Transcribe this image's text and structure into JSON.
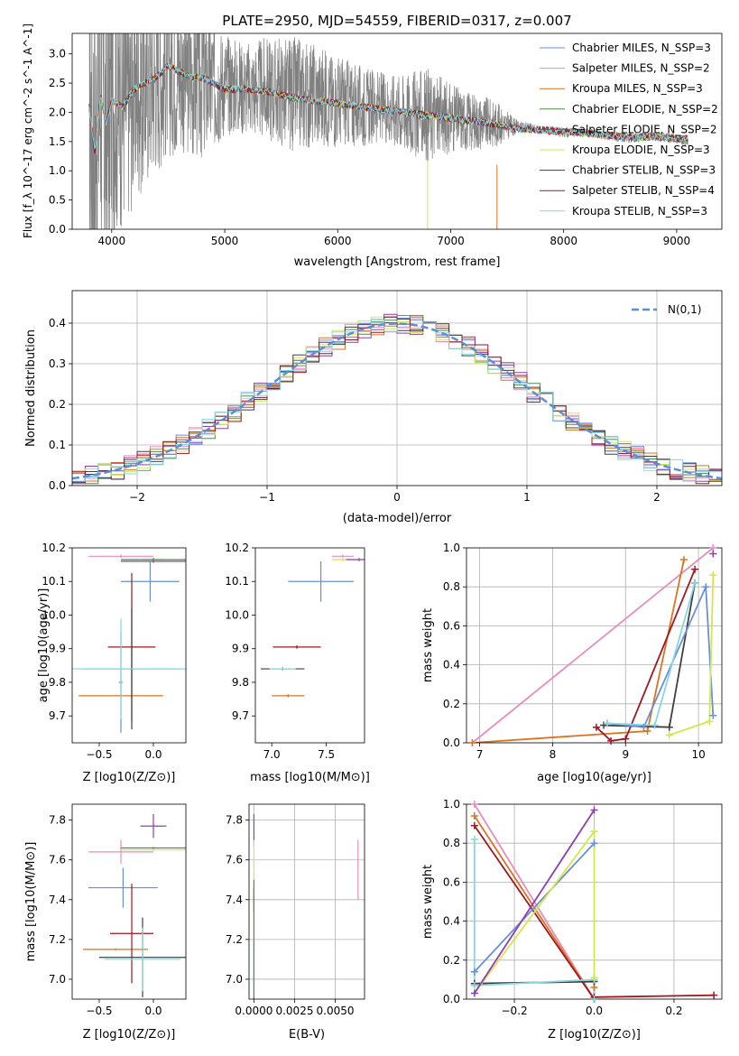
{
  "figure_title": "PLATE=2950, MJD=54559, FIBERID=0317, z=0.007",
  "colors": {
    "data": "#808080",
    "Chabrier MILES": "#6a8fd6",
    "Salpeter MILES": "#e98cbd",
    "Kroupa MILES": "#d9741e",
    "Chabrier ELODIE": "#4e8a4e",
    "Salpeter ELODIE": "#8e3fb0",
    "Kroupa ELODIE": "#d2e84a",
    "Chabrier STELIB": "#3f3f3f",
    "Salpeter STELIB": "#a01621",
    "Kroupa STELIB": "#86d7e0",
    "gaussian": "#5b8ed8",
    "grid": "#b0b0b0"
  },
  "chart_data": [
    {
      "id": "spectrum",
      "type": "line",
      "title": "PLATE=2950, MJD=54559, FIBERID=0317, z=0.007",
      "xlabel": "wavelength [Angstrom, rest frame]",
      "ylabel": "Flux [f_λ 10^-17 erg cm^-2 s^-1 A^-1]",
      "xlim": [
        3650,
        9400
      ],
      "ylim": [
        0,
        3.35
      ],
      "xticks": [
        4000,
        5000,
        6000,
        7000,
        8000,
        9000
      ],
      "yticks": [
        0.0,
        0.5,
        1.0,
        1.5,
        2.0,
        2.5,
        3.0
      ],
      "grid": false,
      "legend_position": "top-right",
      "legend": [
        {
          "label": "Chabrier MILES, N_SSP=3",
          "name": "Chabrier MILES",
          "ssp": "3"
        },
        {
          "label": "Salpeter MILES, N_SSP=2",
          "name": "Salpeter MILES",
          "ssp": "2"
        },
        {
          "label": "Kroupa MILES, N_SSP=3",
          "name": "Kroupa MILES",
          "ssp": "3"
        },
        {
          "label": "Chabrier ELODIE, N_SSP=2",
          "name": "Chabrier ELODIE",
          "ssp": "2"
        },
        {
          "label": "Salpeter ELODIE, N_SSP=2",
          "name": "Salpeter ELODIE",
          "ssp": "2"
        },
        {
          "label": "Kroupa ELODIE, N_SSP=3",
          "name": "Kroupa ELODIE",
          "ssp": "3"
        },
        {
          "label": "Chabrier STELIB, N_SSP=3",
          "name": "Chabrier STELIB",
          "ssp": "3"
        },
        {
          "label": "Salpeter STELIB, N_SSP=4",
          "name": "Salpeter STELIB",
          "ssp": "4"
        },
        {
          "label": "Kroupa STELIB, N_SSP=3",
          "name": "Kroupa STELIB",
          "ssp": "3"
        }
      ],
      "observed": {
        "x": [
          3800,
          3850,
          3900,
          3950,
          4000,
          4100,
          4200,
          4300,
          4400,
          4500,
          4600,
          4700,
          4800,
          4900,
          5000,
          5200,
          5400,
          5600,
          5800,
          6000,
          6200,
          6400,
          6600,
          6800,
          7000,
          7200,
          7400,
          7600,
          7800,
          8000,
          8200,
          8400,
          8600,
          8800,
          9000,
          9100
        ],
        "y": [
          2.2,
          1.5,
          2.4,
          1.6,
          2.3,
          2.2,
          2.4,
          2.5,
          2.6,
          2.7,
          2.7,
          2.6,
          2.6,
          2.5,
          2.5,
          2.4,
          2.4,
          2.3,
          2.3,
          2.2,
          2.1,
          2.1,
          2.0,
          1.95,
          1.9,
          1.85,
          1.8,
          1.75,
          1.7,
          1.65,
          1.65,
          1.6,
          1.55,
          1.6,
          1.55,
          1.5
        ],
        "noise_amplitude": [
          3.0,
          3.0,
          3.0,
          3.0,
          2.5,
          2.2,
          2.0,
          1.8,
          1.6,
          1.5,
          1.4,
          1.4,
          1.5,
          1.2,
          0.9,
          0.8,
          0.9,
          1.0,
          0.9,
          0.8,
          0.7,
          0.6,
          0.7,
          0.8,
          0.6,
          0.5,
          0.4,
          0.1,
          0.08,
          0.08,
          0.08,
          0.08,
          0.08,
          0.08,
          0.08,
          0.08
        ]
      },
      "model": {
        "x": [
          3800,
          3850,
          3900,
          3950,
          4000,
          4100,
          4200,
          4300,
          4400,
          4500,
          4600,
          4700,
          4800,
          4900,
          5000,
          5200,
          5400,
          5600,
          5800,
          6000,
          6200,
          6400,
          6600,
          6800,
          7000,
          7200,
          7400,
          7600,
          7800,
          8000,
          8200,
          8400,
          8600,
          8800,
          9000,
          9100
        ],
        "y": [
          2.1,
          1.3,
          2.3,
          1.8,
          2.2,
          2.1,
          2.4,
          2.5,
          2.6,
          2.8,
          2.7,
          2.6,
          2.6,
          2.5,
          2.4,
          2.4,
          2.35,
          2.25,
          2.2,
          2.15,
          2.1,
          2.05,
          2.0,
          1.95,
          1.9,
          1.85,
          1.8,
          1.72,
          1.7,
          1.67,
          1.65,
          1.6,
          1.58,
          1.58,
          1.55,
          1.55
        ]
      }
    },
    {
      "id": "residuals",
      "type": "line",
      "xlabel": "(data-model)/error",
      "ylabel": "Normed distribution",
      "xlim": [
        -2.5,
        2.5
      ],
      "ylim": [
        0,
        0.48
      ],
      "xticks": [
        -2,
        -1,
        0,
        1,
        2
      ],
      "yticks": [
        0.0,
        0.1,
        0.2,
        0.3,
        0.4
      ],
      "grid": true,
      "legend_position": "top-right",
      "legend_label": "N(0,1)",
      "bin_edges_start": -2.5,
      "bin_width": 0.1
    },
    {
      "id": "age_vs_Z",
      "type": "scatter",
      "xlabel": "Z [log10(Z/Z⊙)]",
      "ylabel": "age [log10(age/yr)]",
      "xlim": [
        -0.75,
        0.3
      ],
      "ylim": [
        9.62,
        10.2
      ],
      "xticks": [
        -0.5,
        0.0
      ],
      "yticks": [
        9.7,
        9.8,
        9.9,
        10.0,
        10.1,
        10.2
      ],
      "grid": false,
      "errorbars": [
        {
          "series": "Salpeter MILES",
          "x": -0.3,
          "xerr": 0.3,
          "y": 10.175,
          "yerr": 0.005
        },
        {
          "series": "Kroupa MILES",
          "x": -0.3,
          "xerr": 0.39,
          "y": 9.76,
          "yerr": 0.005
        },
        {
          "series": "Chabrier MILES",
          "x": -0.3,
          "xerr": 0.02,
          "y": 9.8,
          "yerr": 0.15
        },
        {
          "series": "Chabrier MILES",
          "x": -0.03,
          "xerr": 0.27,
          "y": 10.1,
          "yerr": 0.06
        },
        {
          "series": "Kroupa ELODIE",
          "x": 0.0,
          "xerr": 0.1,
          "y": 10.165,
          "yerr": 0.005
        },
        {
          "series": "Salpeter ELODIE",
          "x": 0.0,
          "xerr": 0.3,
          "y": 10.16,
          "yerr": 0.005
        },
        {
          "series": "Chabrier ELODIE",
          "x": 0.0,
          "xerr": 0.3,
          "y": 10.165,
          "yerr": 0.005
        },
        {
          "series": "Salpeter STELIB",
          "x": -0.2,
          "xerr": 0.22,
          "y": 9.905,
          "yerr": 0.22
        },
        {
          "series": "Chabrier STELIB",
          "x": -0.2,
          "xerr": 0.46,
          "y": 9.84,
          "yerr": 0.18
        },
        {
          "series": "Kroupa STELIB",
          "x": -0.3,
          "xerr": 0.6,
          "y": 9.84,
          "yerr": 0.15
        }
      ]
    },
    {
      "id": "age_vs_mass",
      "type": "scatter",
      "xlabel": "mass [log10(M/M⊙)]",
      "ylabel": "",
      "xlim": [
        6.85,
        7.85
      ],
      "ylim": [
        9.62,
        10.2
      ],
      "xticks": [
        7.0,
        7.5
      ],
      "yticks": [
        9.7,
        9.8,
        9.9,
        10.0,
        10.1,
        10.2
      ],
      "grid": false,
      "errorbars": [
        {
          "series": "Salpeter MILES",
          "x": 7.65,
          "xerr": 0.1,
          "y": 10.175,
          "yerr": 0.005
        },
        {
          "series": "Kroupa MILES",
          "x": 7.15,
          "xerr": 0.15,
          "y": 9.76,
          "yerr": 0.005
        },
        {
          "series": "Chabrier MILES",
          "x": 7.45,
          "xerr": 0.3,
          "y": 10.1,
          "yerr": 0.06
        },
        {
          "series": "Kroupa ELODIE",
          "x": 7.65,
          "xerr": 0.1,
          "y": 10.165,
          "yerr": 0.005
        },
        {
          "series": "Salpeter ELODIE",
          "x": 7.8,
          "xerr": 0.12,
          "y": 10.165,
          "yerr": 0.005
        },
        {
          "series": "Salpeter STELIB",
          "x": 7.23,
          "xerr": 0.22,
          "y": 9.905,
          "yerr": 0.005
        },
        {
          "series": "Chabrier STELIB",
          "x": 7.1,
          "xerr": 0.2,
          "y": 9.84,
          "yerr": 0.005
        },
        {
          "series": "Kroupa STELIB",
          "x": 7.1,
          "xerr": 0.12,
          "y": 9.84,
          "yerr": 0.005
        }
      ]
    },
    {
      "id": "weight_vs_age",
      "type": "line",
      "xlabel": "age [log10(age/yr)]",
      "ylabel": "mass weight",
      "xlim": [
        6.82,
        10.32
      ],
      "ylim": [
        0,
        1.0
      ],
      "xticks": [
        7,
        8,
        9,
        10
      ],
      "yticks": [
        0.0,
        0.2,
        0.4,
        0.6,
        0.8,
        1.0
      ],
      "grid": true,
      "series": [
        {
          "name": "Salpeter MILES",
          "x": [
            6.9,
            10.2
          ],
          "y": [
            0.0,
            1.0
          ]
        },
        {
          "name": "Kroupa MILES",
          "x": [
            6.9,
            9.3,
            9.8
          ],
          "y": [
            0.0,
            0.06,
            0.94
          ]
        },
        {
          "name": "Salpeter STELIB",
          "x": [
            8.6,
            8.8,
            9.0,
            9.95
          ],
          "y": [
            0.08,
            0.01,
            0.02,
            0.89
          ]
        },
        {
          "name": "Chabrier STELIB",
          "x": [
            8.7,
            9.6,
            9.95
          ],
          "y": [
            0.09,
            0.08,
            0.82
          ]
        },
        {
          "name": "Chabrier MILES",
          "x": [
            8.75,
            9.25,
            10.1,
            10.2
          ],
          "y": [
            0.1,
            0.08,
            0.8,
            0.14
          ]
        },
        {
          "name": "Kroupa STELIB",
          "x": [
            8.75,
            9.4,
            9.95
          ],
          "y": [
            0.1,
            0.09,
            0.82
          ]
        },
        {
          "name": "Kroupa ELODIE",
          "x": [
            9.6,
            10.15,
            10.2
          ],
          "y": [
            0.04,
            0.11,
            0.86
          ]
        },
        {
          "name": "Salpeter ELODIE",
          "x": [
            10.2
          ],
          "y": [
            0.97
          ]
        }
      ]
    },
    {
      "id": "mass_vs_Z",
      "type": "scatter",
      "xlabel": "Z [log10(Z/Z⊙)]",
      "ylabel": "mass [log10(M/M⊙)]",
      "xlim": [
        -0.75,
        0.3
      ],
      "ylim": [
        6.9,
        7.88
      ],
      "xticks": [
        -0.5,
        0.0
      ],
      "yticks": [
        7.0,
        7.2,
        7.4,
        7.6,
        7.8
      ],
      "grid": false,
      "errorbars": [
        {
          "series": "Salpeter MILES",
          "x": -0.3,
          "xerr": 0.3,
          "y": 7.64,
          "yerr": 0.06
        },
        {
          "series": "Kroupa MILES",
          "x": -0.35,
          "xerr": 0.3,
          "y": 7.15,
          "yerr": 0.005
        },
        {
          "series": "Chabrier MILES",
          "x": -0.28,
          "xerr": 0.32,
          "y": 7.46,
          "yerr": 0.1
        },
        {
          "series": "Salpeter ELODIE",
          "x": 0.0,
          "xerr": 0.12,
          "y": 7.77,
          "yerr": 0.06
        },
        {
          "series": "Kroupa ELODIE",
          "x": 0.0,
          "xerr": 0.3,
          "y": 7.65,
          "yerr": 0.005
        },
        {
          "series": "Chabrier ELODIE",
          "x": 0.0,
          "xerr": 0.3,
          "y": 7.66,
          "yerr": 0.005
        },
        {
          "series": "Salpeter STELIB",
          "x": -0.2,
          "xerr": 0.2,
          "y": 7.23,
          "yerr": 0.25
        },
        {
          "series": "Chabrier STELIB",
          "x": -0.1,
          "xerr": 0.4,
          "y": 7.11,
          "yerr": 0.2
        },
        {
          "series": "Kroupa STELIB",
          "x": -0.1,
          "xerr": 0.35,
          "y": 7.1,
          "yerr": 0.16
        }
      ]
    },
    {
      "id": "mass_vs_EBV",
      "type": "scatter",
      "xlabel": "E(B-V)",
      "ylabel": "",
      "xlim": [
        -0.0003,
        0.0068
      ],
      "ylim": [
        6.9,
        7.88
      ],
      "xticks": [
        0.0,
        0.0025,
        0.005
      ],
      "xticklabels": [
        "0.0000",
        "0.0025",
        "0.0050"
      ],
      "yticks": [
        7.0,
        7.2,
        7.4,
        7.6,
        7.8
      ],
      "grid": true,
      "errorbars": [
        {
          "series": "Salpeter ELODIE",
          "x": 0.0,
          "xerr": 0.0,
          "y": 7.75,
          "yerr": 0.08
        },
        {
          "series": "Kroupa ELODIE",
          "x": 0.0,
          "xerr": 0.0,
          "y": 7.6,
          "yerr": 0.1
        },
        {
          "series": "Salpeter STELIB",
          "x": 0.0,
          "xerr": 0.0,
          "y": 7.4,
          "yerr": 0.06
        },
        {
          "series": "Kroupa STELIB",
          "x": 0.0,
          "xerr": 0.0,
          "y": 7.05,
          "yerr": 0.15
        },
        {
          "series": "Chabrier ELODIE",
          "x": 0.0,
          "xerr": 0.0,
          "y": 7.2,
          "yerr": 0.3
        },
        {
          "series": "Salpeter MILES",
          "x": 0.0064,
          "xerr": 0.0,
          "y": 7.55,
          "yerr": 0.15
        }
      ]
    },
    {
      "id": "weight_vs_Z",
      "type": "line",
      "xlabel": "Z [log10(Z/Z⊙)]",
      "ylabel": "mass weight",
      "xlim": [
        -0.32,
        0.32
      ],
      "ylim": [
        0,
        1.0
      ],
      "xticks": [
        -0.2,
        0.0,
        0.2
      ],
      "yticks": [
        0.0,
        0.2,
        0.4,
        0.6,
        0.8,
        1.0
      ],
      "grid": true,
      "series": [
        {
          "name": "Salpeter MILES",
          "x": [
            -0.3,
            0.0
          ],
          "y": [
            1.0,
            0.0
          ]
        },
        {
          "name": "Kroupa MILES",
          "x": [
            -0.3,
            0.0,
            0.0
          ],
          "y": [
            0.94,
            0.0,
            0.06
          ]
        },
        {
          "name": "Salpeter STELIB",
          "x": [
            -0.3,
            0.0,
            0.0,
            0.3
          ],
          "y": [
            0.89,
            0.0,
            0.01,
            0.02
          ]
        },
        {
          "name": "Chabrier STELIB",
          "x": [
            -0.3,
            0.0,
            0.0
          ],
          "y": [
            0.08,
            0.09,
            0.0
          ]
        },
        {
          "name": "Chabrier MILES",
          "x": [
            -0.3,
            0.0
          ],
          "y": [
            0.14,
            0.8
          ]
        },
        {
          "name": "Kroupa STELIB",
          "x": [
            -0.3,
            -0.3,
            0.0,
            0.0
          ],
          "y": [
            0.82,
            0.07,
            0.1,
            0.0
          ]
        },
        {
          "name": "Kroupa ELODIE",
          "x": [
            -0.3,
            0.0,
            0.0
          ],
          "y": [
            0.03,
            0.86,
            0.11
          ]
        },
        {
          "name": "Salpeter ELODIE",
          "x": [
            -0.3,
            0.0
          ],
          "y": [
            0.03,
            0.97
          ]
        }
      ]
    }
  ]
}
